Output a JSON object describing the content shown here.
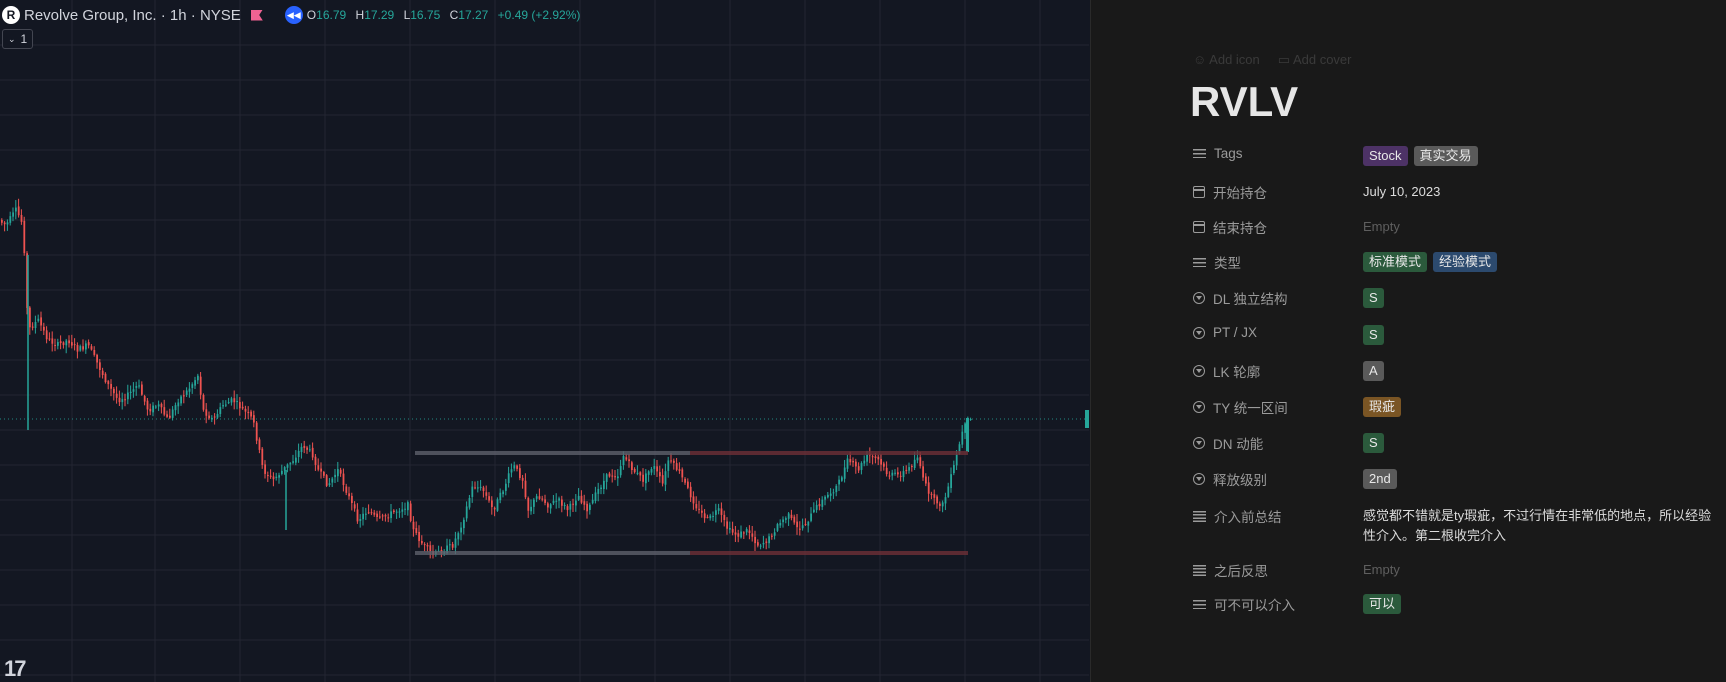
{
  "chart": {
    "company": "Revolve Group, Inc.",
    "interval": "1h",
    "exchange": "NYSE",
    "logo_letter": "R",
    "ohlc": {
      "o_label": "O",
      "o": "16.79",
      "h_label": "H",
      "h": "17.29",
      "l_label": "L",
      "l": "16.75",
      "c_label": "C",
      "c": "17.27",
      "change": "+0.49 (+2.92%)"
    },
    "collapse_count": "1",
    "tv_logo": "17",
    "colors": {
      "background": "#131722",
      "up": "#26a69a",
      "down": "#ef5350",
      "grid": "#232632"
    }
  },
  "notion": {
    "add_icon": "Add icon",
    "add_cover": "Add cover",
    "title": "RVLV",
    "properties": [
      {
        "name": "Tags",
        "icon": "list-icon",
        "tags": [
          {
            "label": "Stock",
            "color": "#4d3266"
          },
          {
            "label": "真实交易",
            "color": "#5a5a5a"
          }
        ]
      },
      {
        "name": "开始持仓",
        "icon": "calendar-icon",
        "value": "July 10, 2023"
      },
      {
        "name": "结束持仓",
        "icon": "calendar-icon",
        "value": "Empty",
        "empty": true
      },
      {
        "name": "类型",
        "icon": "list-icon",
        "tags": [
          {
            "label": "标准模式",
            "color": "#2b5a3c"
          },
          {
            "label": "经验模式",
            "color": "#2c4a6e"
          }
        ]
      },
      {
        "name": "DL 独立结构",
        "icon": "select-icon",
        "tags": [
          {
            "label": "S",
            "color": "#2b5a3c"
          }
        ]
      },
      {
        "name": "PT / JX",
        "icon": "select-icon",
        "tags": [
          {
            "label": "S",
            "color": "#2b5a3c"
          }
        ]
      },
      {
        "name": "LK 轮廓",
        "icon": "select-icon",
        "tags": [
          {
            "label": "A",
            "color": "#5a5a5a"
          }
        ]
      },
      {
        "name": "TY 统一区间",
        "icon": "select-icon",
        "tags": [
          {
            "label": "瑕疵",
            "color": "#7a5524"
          }
        ]
      },
      {
        "name": "DN 动能",
        "icon": "select-icon",
        "tags": [
          {
            "label": "S",
            "color": "#2b5a3c"
          }
        ]
      },
      {
        "name": "释放级别",
        "icon": "select-icon",
        "tags": [
          {
            "label": "2nd",
            "color": "#5a5a5a"
          }
        ]
      },
      {
        "name": "介入前总结",
        "icon": "text-icon",
        "value": "感觉都不错就是ty瑕疵，不过行情在非常低的地点，所以经验性介入。第二根收完介入"
      },
      {
        "name": "之后反思",
        "icon": "text-icon",
        "value": "Empty",
        "empty": true
      },
      {
        "name": "可不可以介入",
        "icon": "list-icon",
        "tags": [
          {
            "label": "可以",
            "color": "#2b5a3c"
          }
        ]
      }
    ]
  }
}
